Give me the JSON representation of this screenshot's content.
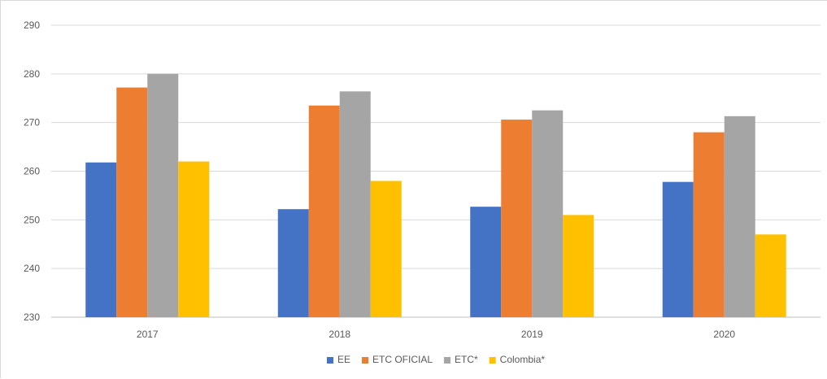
{
  "chart_data": {
    "type": "bar",
    "title": "",
    "xlabel": "",
    "ylabel": "",
    "categories": [
      "2017",
      "2018",
      "2019",
      "2020"
    ],
    "series": [
      {
        "name": "EE",
        "color": "#4472C4",
        "values": [
          261.8,
          252.2,
          252.7,
          257.8
        ]
      },
      {
        "name": "ETC OFICIAL",
        "color": "#ED7D31",
        "values": [
          277.2,
          273.5,
          270.6,
          268
        ]
      },
      {
        "name": "ETC*",
        "color": "#A5A5A5",
        "values": [
          280,
          276.4,
          272.5,
          271.3
        ]
      },
      {
        "name": "Colombia*",
        "color": "#FFC000",
        "values": [
          262,
          258,
          251,
          247
        ]
      }
    ],
    "ylim": [
      230,
      290
    ],
    "yticks": [
      "230",
      "240",
      "250",
      "260",
      "270",
      "280",
      "290"
    ],
    "grid": true,
    "legend_position": "bottom"
  }
}
